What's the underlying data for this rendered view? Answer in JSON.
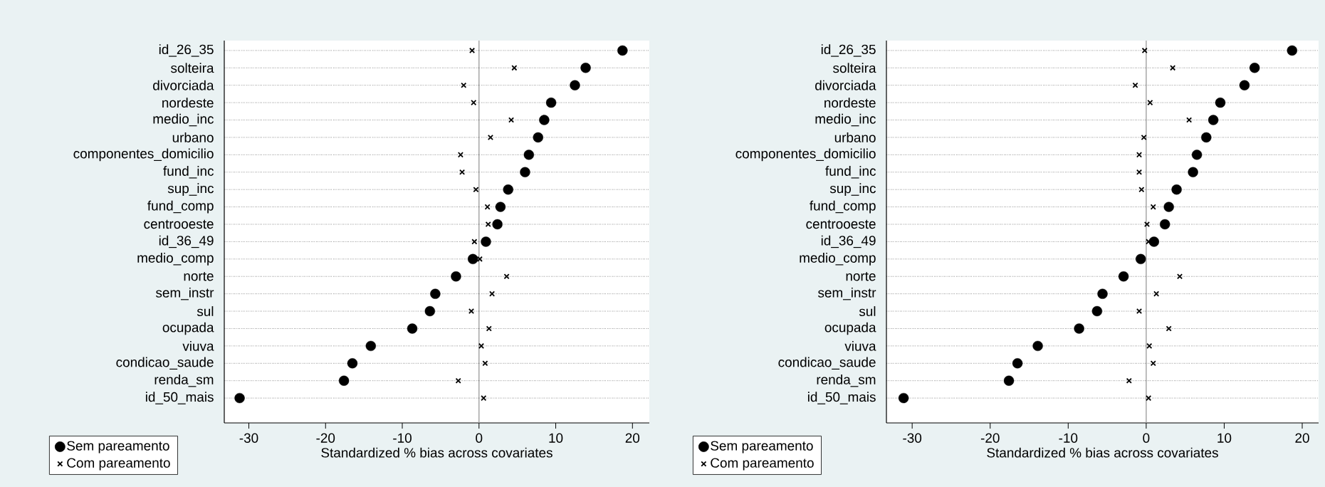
{
  "chart_data": [
    {
      "type": "scatter",
      "orientation": "horizontal",
      "xlabel": "Standardized % bias across covariates",
      "categories": [
        "id_26_35",
        "solteira",
        "divorciada",
        "nordeste",
        "medio_inc",
        "urbano",
        "componentes_domicilio",
        "fund_inc",
        "sup_inc",
        "fund_comp",
        "centrooeste",
        "id_36_49",
        "medio_comp",
        "norte",
        "sem_instr",
        "sul",
        "ocupada",
        "viuva",
        "condicao_saude",
        "renda_sm",
        "id_50_mais"
      ],
      "series": [
        {
          "name": "Sem pareamento",
          "color": "#000000",
          "marker": "circle",
          "values": [
            18.7,
            13.9,
            12.5,
            9.4,
            8.5,
            7.7,
            6.5,
            6.0,
            3.8,
            2.8,
            2.4,
            0.9,
            -0.8,
            -3.0,
            -5.7,
            -6.4,
            -8.7,
            -14.1,
            -16.5,
            -17.6,
            -31.2
          ]
        },
        {
          "name": "Com pareamento",
          "color": "#000000",
          "marker": "cross",
          "values": [
            -0.9,
            4.6,
            -2.0,
            -0.7,
            4.2,
            1.5,
            -2.4,
            -2.2,
            -0.4,
            1.1,
            1.2,
            -0.6,
            0.1,
            3.6,
            1.7,
            -1.0,
            1.3,
            0.3,
            0.8,
            -2.7,
            0.6
          ]
        }
      ],
      "xlim": [
        -33.2,
        22.2
      ],
      "xticks": [
        -30,
        -20,
        -10,
        0,
        10,
        20
      ],
      "grid": "y",
      "legend": "bottom left",
      "ref_lines": [
        {
          "axis": "x",
          "value": 0,
          "color": "#999999"
        }
      ]
    },
    {
      "type": "scatter",
      "orientation": "horizontal",
      "xlabel": "Standardized % bias across covariates",
      "categories": [
        "id_26_35",
        "solteira",
        "divorciada",
        "nordeste",
        "medio_inc",
        "urbano",
        "componentes_domicilio",
        "fund_inc",
        "sup_inc",
        "fund_comp",
        "centrooeste",
        "id_36_49",
        "medio_comp",
        "norte",
        "sem_instr",
        "sul",
        "ocupada",
        "viuva",
        "condicao_saude",
        "renda_sm",
        "id_50_mais"
      ],
      "series": [
        {
          "name": "Sem pareamento",
          "color": "#000000",
          "marker": "circle",
          "values": [
            18.7,
            13.9,
            12.6,
            9.5,
            8.6,
            7.7,
            6.5,
            6.0,
            3.9,
            2.9,
            2.4,
            1.0,
            -0.7,
            -2.9,
            -5.6,
            -6.3,
            -8.6,
            -13.9,
            -16.5,
            -17.6,
            -31.1
          ]
        },
        {
          "name": "Com pareamento",
          "color": "#000000",
          "marker": "cross",
          "values": [
            -0.2,
            3.4,
            -1.4,
            0.5,
            5.5,
            -0.3,
            -0.9,
            -0.9,
            -0.6,
            0.9,
            0.1,
            0.3,
            null,
            4.3,
            1.3,
            -0.9,
            2.9,
            0.4,
            0.9,
            -2.2,
            0.3
          ]
        }
      ],
      "xlim": [
        -33.3,
        22.1
      ],
      "xticks": [
        -30,
        -20,
        -10,
        0,
        10,
        20
      ],
      "grid": "y",
      "legend": "bottom left",
      "ref_lines": [
        {
          "axis": "x",
          "value": 0,
          "color": "#999999"
        }
      ]
    }
  ]
}
